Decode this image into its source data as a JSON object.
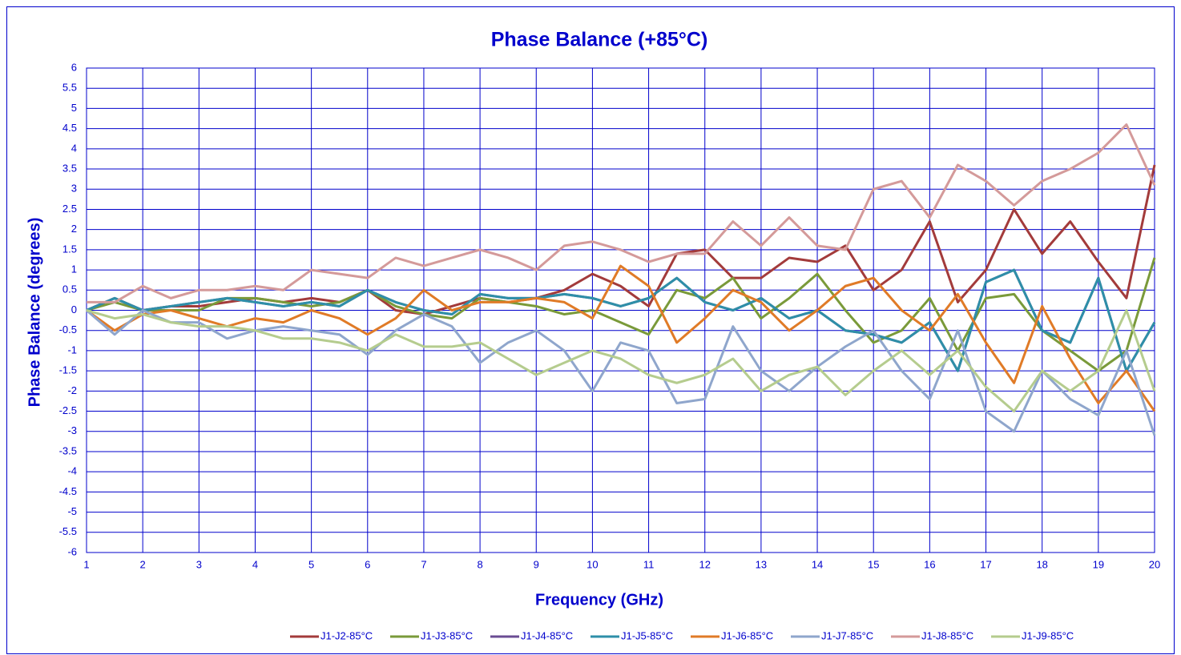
{
  "chart_data": {
    "type": "line",
    "title": "Phase Balance (+85°C)",
    "x_label": "Frequency (GHz)",
    "y_label": "Phase Balance (degrees)",
    "x": [
      1,
      1.5,
      2,
      2.5,
      3,
      3.5,
      4,
      4.5,
      5,
      5.5,
      6,
      6.5,
      7,
      7.5,
      8,
      8.5,
      9,
      9.5,
      10,
      10.5,
      11,
      11.5,
      12,
      12.5,
      13,
      13.5,
      14,
      14.5,
      15,
      15.5,
      16,
      16.5,
      17,
      17.5,
      18,
      18.5,
      19,
      19.5,
      20
    ],
    "xlim": [
      1,
      20
    ],
    "xticks": [
      1,
      2,
      3,
      4,
      5,
      6,
      7,
      8,
      9,
      10,
      11,
      12,
      13,
      14,
      15,
      16,
      17,
      18,
      19,
      20
    ],
    "ylim": [
      -6,
      6
    ],
    "yticks": [
      -6,
      -5.5,
      -5,
      -4.5,
      -4,
      -3.5,
      -3,
      -2.5,
      -2,
      -1.5,
      -1,
      -0.5,
      0,
      0.5,
      1,
      1.5,
      2,
      2.5,
      3,
      3.5,
      4,
      4.5,
      5,
      5.5,
      6
    ],
    "grid": true,
    "legend": "bottom",
    "series": [
      {
        "name": "J1-J2-85°C",
        "color": "#a33b3b",
        "values": [
          0,
          0.3,
          0,
          0.1,
          0.1,
          0.2,
          0.3,
          0.2,
          0.3,
          0.2,
          0.5,
          0,
          -0.1,
          0.1,
          0.3,
          0.2,
          0.3,
          0.5,
          0.9,
          0.6,
          0.1,
          1.4,
          1.5,
          0.8,
          0.8,
          1.3,
          1.2,
          1.6,
          0.5,
          1,
          2.2,
          0.2,
          1,
          2.5,
          1.4,
          2.2,
          1.2,
          0.3,
          3.6
        ]
      },
      {
        "name": "J1-J3-85°C",
        "color": "#7a9a3a",
        "values": [
          0,
          0.2,
          0,
          0,
          0,
          0.3,
          0.3,
          0.2,
          0.1,
          0.2,
          0.5,
          0.1,
          -0.1,
          -0.2,
          0.3,
          0.2,
          0.1,
          -0.1,
          0,
          -0.3,
          -0.6,
          0.5,
          0.3,
          0.8,
          -0.2,
          0.3,
          0.9,
          0,
          -0.8,
          -0.5,
          0.3,
          -1,
          0.3,
          0.4,
          -0.5,
          -1,
          -1.5,
          -1,
          1.3
        ]
      },
      {
        "name": "J1-J4-85°C",
        "color": "#6a4c93",
        "values": [
          0,
          0.3,
          0,
          0.1,
          0.2,
          0.3,
          0.2,
          0.1,
          0.2,
          0.1,
          0.5,
          0.2,
          0,
          -0.1,
          0.4,
          0.3,
          0.3,
          0.4,
          0.3,
          0.1,
          0.3,
          0.8,
          0.2,
          0,
          0.3,
          -0.2,
          0,
          -0.5,
          -0.6,
          -0.8,
          -0.3,
          -1.5,
          0.7,
          1,
          -0.5,
          -0.8,
          0.8,
          -1.5,
          -0.3
        ]
      },
      {
        "name": "J1-J5-85°C",
        "color": "#2e8fa8",
        "values": [
          0,
          0.3,
          0,
          0.1,
          0.2,
          0.3,
          0.2,
          0.1,
          0.2,
          0.1,
          0.5,
          0.2,
          0,
          -0.1,
          0.4,
          0.3,
          0.3,
          0.4,
          0.3,
          0.1,
          0.3,
          0.8,
          0.2,
          0,
          0.3,
          -0.2,
          0,
          -0.5,
          -0.6,
          -0.8,
          -0.3,
          -1.5,
          0.7,
          1,
          -0.5,
          -0.8,
          0.8,
          -1.5,
          -0.3
        ]
      },
      {
        "name": "J1-J6-85°C",
        "color": "#e07b27",
        "values": [
          0,
          -0.5,
          -0.1,
          0,
          -0.2,
          -0.4,
          -0.2,
          -0.3,
          0,
          -0.2,
          -0.6,
          -0.2,
          0.5,
          0,
          0.2,
          0.2,
          0.3,
          0.2,
          -0.2,
          1.1,
          0.6,
          -0.8,
          -0.2,
          0.5,
          0.2,
          -0.5,
          0,
          0.6,
          0.8,
          0,
          -0.5,
          0.4,
          -0.8,
          -1.8,
          0.1,
          -1.2,
          -2.3,
          -1.5,
          -2.5
        ]
      },
      {
        "name": "J1-J7-85°C",
        "color": "#8fa6cc",
        "values": [
          0,
          -0.6,
          0,
          -0.3,
          -0.3,
          -0.7,
          -0.5,
          -0.4,
          -0.5,
          -0.6,
          -1.1,
          -0.5,
          -0.1,
          -0.4,
          -1.3,
          -0.8,
          -0.5,
          -1,
          -2,
          -0.8,
          -1,
          -2.3,
          -2.2,
          -0.4,
          -1.5,
          -2,
          -1.4,
          -0.9,
          -0.5,
          -1.5,
          -2.2,
          -0.5,
          -2.5,
          -3,
          -1.5,
          -2.2,
          -2.6,
          -1,
          -3.1
        ]
      },
      {
        "name": "J1-J8-85°C",
        "color": "#d49a9a",
        "values": [
          0.2,
          0.2,
          0.6,
          0.3,
          0.5,
          0.5,
          0.6,
          0.5,
          1,
          0.9,
          0.8,
          1.3,
          1.1,
          1.3,
          1.5,
          1.3,
          1,
          1.6,
          1.7,
          1.5,
          1.2,
          1.4,
          1.4,
          2.2,
          1.6,
          2.3,
          1.6,
          1.5,
          3,
          3.2,
          2.3,
          3.6,
          3.2,
          2.6,
          3.2,
          3.5,
          3.9,
          4.6,
          3.1
        ]
      },
      {
        "name": "J1-J9-85°C",
        "color": "#b5cc8e",
        "values": [
          0,
          -0.2,
          -0.1,
          -0.3,
          -0.4,
          -0.4,
          -0.5,
          -0.7,
          -0.7,
          -0.8,
          -1,
          -0.6,
          -0.9,
          -0.9,
          -0.8,
          -1.2,
          -1.6,
          -1.3,
          -1,
          -1.2,
          -1.6,
          -1.8,
          -1.6,
          -1.2,
          -2,
          -1.6,
          -1.4,
          -2.1,
          -1.5,
          -1,
          -1.6,
          -1,
          -1.9,
          -2.5,
          -1.5,
          -2,
          -1.5,
          0,
          -2
        ]
      }
    ]
  }
}
